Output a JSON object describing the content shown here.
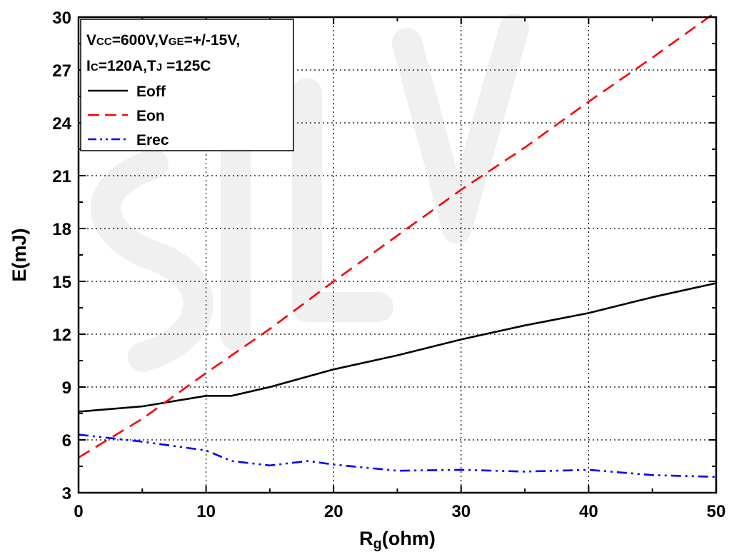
{
  "chart_data": {
    "type": "line",
    "xlabel": {
      "main": "R",
      "sub": "g",
      "rest": "(ohm)"
    },
    "ylabel": "E(mJ)",
    "xlim": [
      0,
      50
    ],
    "ylim": [
      3,
      30
    ],
    "xticks": [
      "0",
      "10",
      "20",
      "30",
      "40",
      "50"
    ],
    "yticks": [
      "3",
      "6",
      "9",
      "12",
      "15",
      "18",
      "21",
      "24",
      "27",
      "30"
    ],
    "grid": true,
    "legend_position": "top-left",
    "conditions": {
      "line1": [
        {
          "text": "V",
          "small": false
        },
        {
          "text": "CC",
          "small": true
        },
        {
          "text": "=600V,V",
          "small": false
        },
        {
          "text": "GE",
          "small": true
        },
        {
          "text": "=+/-15V,",
          "small": false
        }
      ],
      "line2": [
        {
          "text": "I",
          "small": false
        },
        {
          "text": "C",
          "small": true
        },
        {
          "text": "=120A,T",
          "small": false
        },
        {
          "text": "J",
          "small": true
        },
        {
          "text": " =125C",
          "small": false
        }
      ]
    },
    "series": [
      {
        "name": "Eoff",
        "color": "#000000",
        "dash": "solid",
        "x": [
          0,
          5,
          10,
          12,
          15,
          20,
          25,
          30,
          35,
          40,
          45,
          50
        ],
        "y": [
          7.6,
          7.9,
          8.5,
          8.5,
          9.0,
          10.0,
          10.8,
          11.7,
          12.5,
          13.2,
          14.1,
          14.9
        ]
      },
      {
        "name": "Eon",
        "color": "#ff0000",
        "dash": "dashed",
        "x": [
          0,
          5,
          10,
          15,
          20,
          25,
          30,
          35,
          40,
          45,
          50
        ],
        "y": [
          5.0,
          7.2,
          9.8,
          12.3,
          15.0,
          17.6,
          20.2,
          22.6,
          25.2,
          27.7,
          30.3
        ]
      },
      {
        "name": "Erec",
        "color": "#0000ff",
        "dash": "dash-dot-dot",
        "x": [
          0,
          5,
          10,
          12,
          15,
          18,
          20,
          25,
          30,
          35,
          40,
          45,
          50
        ],
        "y": [
          6.3,
          5.9,
          5.4,
          4.8,
          4.55,
          4.8,
          4.6,
          4.25,
          4.3,
          4.2,
          4.3,
          4.0,
          3.9
        ]
      }
    ]
  }
}
